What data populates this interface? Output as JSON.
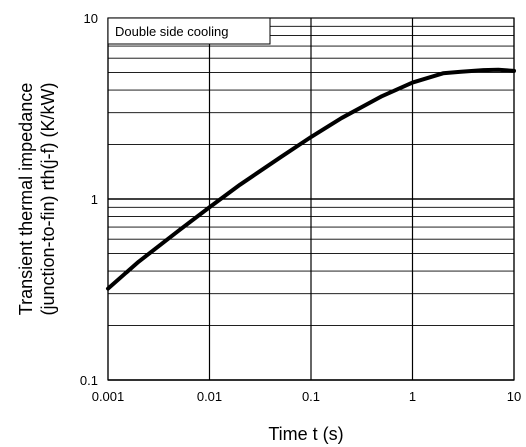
{
  "chart_data": {
    "type": "line",
    "title": "",
    "xlabel": "Time  t  (s)",
    "ylabel_line1": "Transient thermal impedance",
    "ylabel_line2": "(junction-to-fin)   rth(j-f)   (K/kW)",
    "x_scale": "log",
    "y_scale": "log",
    "xlim": [
      0.001,
      10
    ],
    "ylim": [
      0.1,
      10
    ],
    "x_ticks": [
      0.001,
      0.01,
      0.1,
      1,
      10
    ],
    "x_tick_labels": [
      "0.001",
      "0.01",
      "0.1",
      "1",
      "10"
    ],
    "y_ticks": [
      0.1,
      1,
      10
    ],
    "y_tick_labels": [
      "0.1",
      "1",
      "10"
    ],
    "grid": true,
    "legend_placement": "top-left",
    "annotation": "Double side cooling",
    "series": [
      {
        "color": "#000000",
        "x": [
          0.001,
          0.002,
          0.005,
          0.01,
          0.02,
          0.05,
          0.1,
          0.2,
          0.5,
          1,
          2,
          3,
          5,
          7,
          10
        ],
        "y": [
          0.32,
          0.45,
          0.67,
          0.9,
          1.2,
          1.7,
          2.2,
          2.8,
          3.7,
          4.4,
          4.95,
          5.05,
          5.15,
          5.18,
          5.1
        ]
      }
    ]
  }
}
